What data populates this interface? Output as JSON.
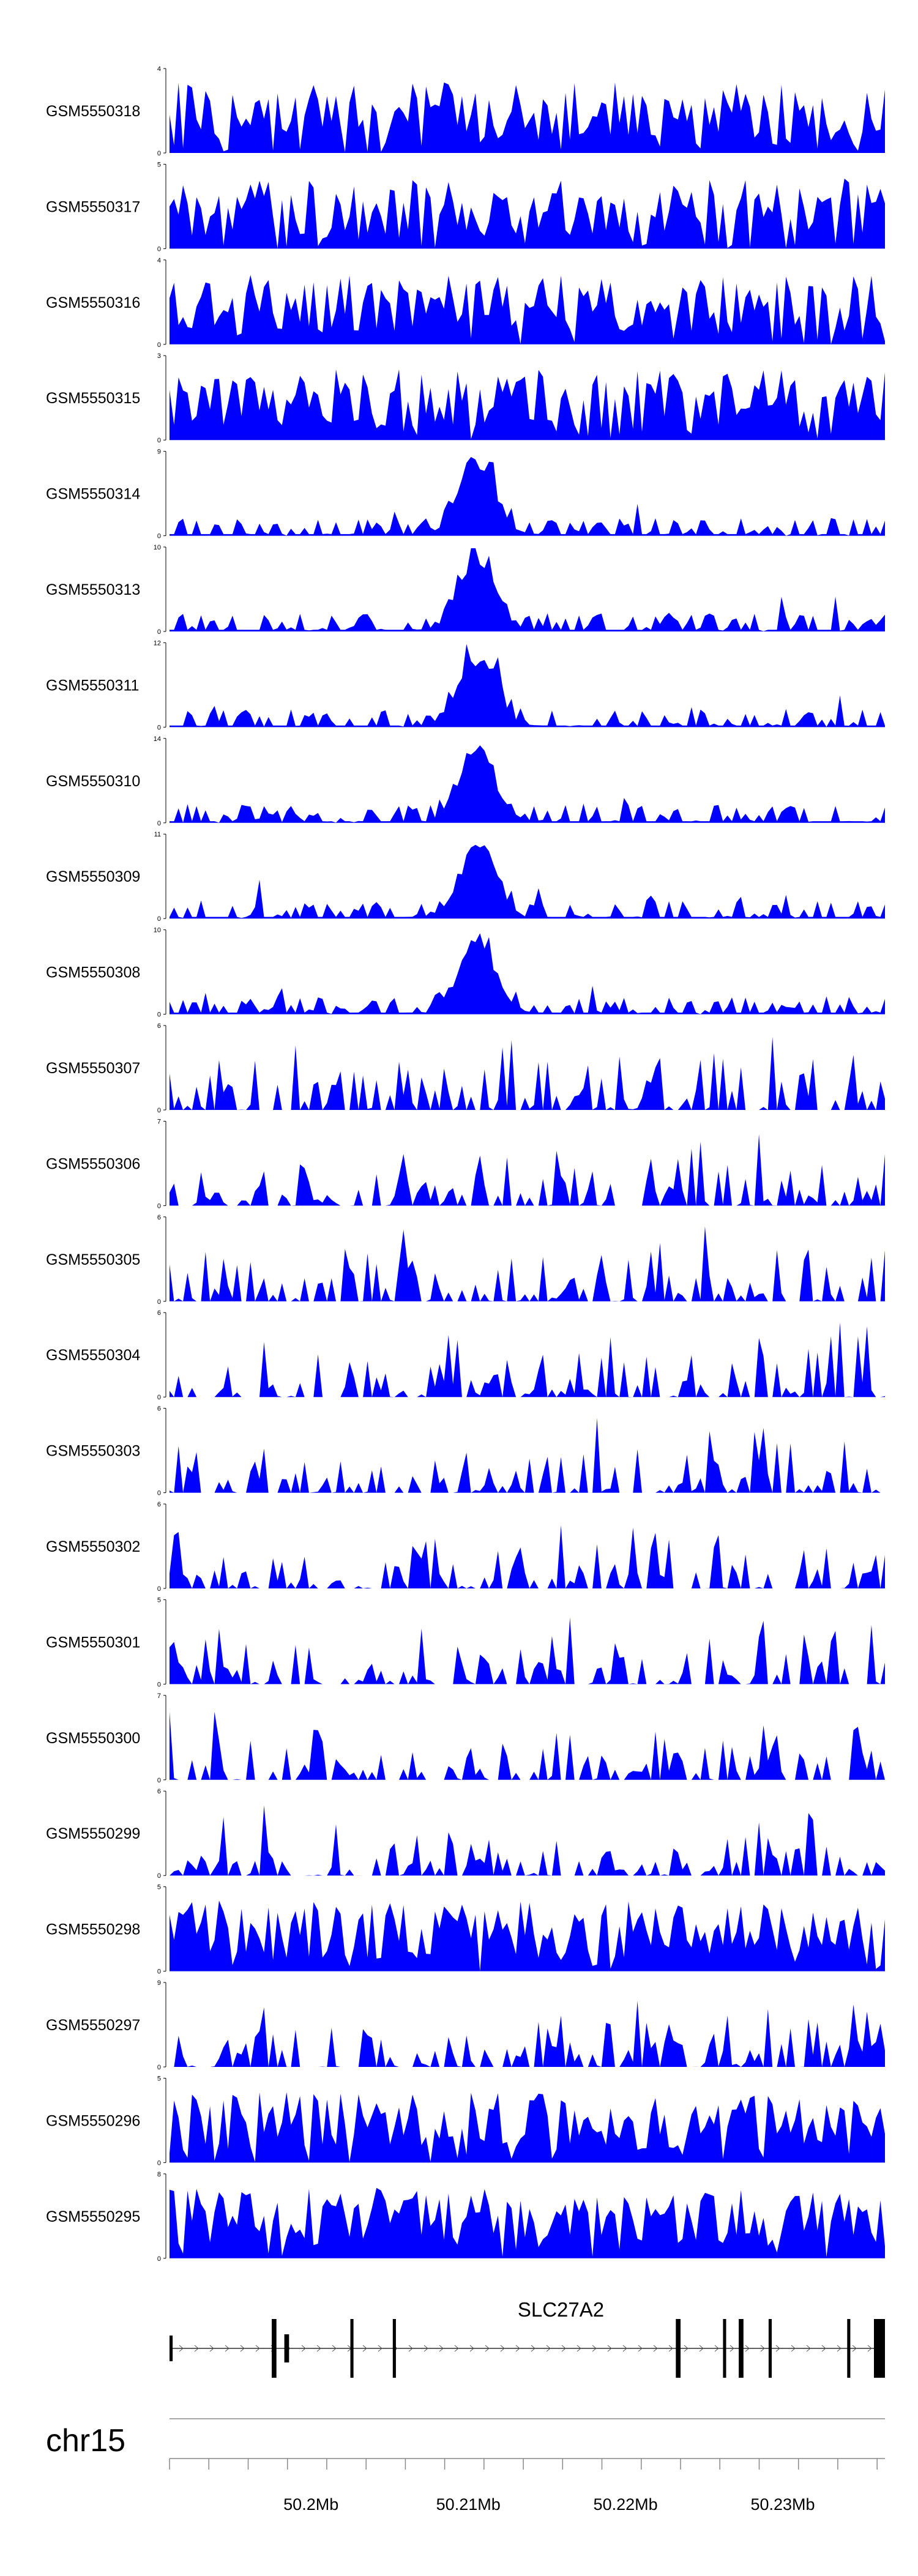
{
  "colors": {
    "signal": "#0000FF",
    "axis": "#000000",
    "gene": "#000000",
    "ruler": "#888888"
  },
  "chart_data": {
    "type": "area",
    "title": "",
    "xlabel": "",
    "ylabel": "",
    "chromosome": "chr15",
    "xlim": [
      50.191,
      50.2365
    ],
    "x_unit": "Mb",
    "x_ticks": [
      50.2,
      50.21,
      50.22,
      50.23
    ],
    "x_tick_labels": [
      "50.2Mb",
      "50.21Mb",
      "50.22Mb",
      "50.23Mb"
    ],
    "bins": 160,
    "tracks": [
      {
        "name": "GSM5550318",
        "ymax": 4,
        "profile": "flat"
      },
      {
        "name": "GSM5550317",
        "ymax": 5,
        "profile": "flat"
      },
      {
        "name": "GSM5550316",
        "ymax": 4,
        "profile": "flat"
      },
      {
        "name": "GSM5550315",
        "ymax": 3,
        "profile": "flat"
      },
      {
        "name": "GSM5550314",
        "ymax": 9,
        "profile": "peak"
      },
      {
        "name": "GSM5550313",
        "ymax": 10,
        "profile": "peak"
      },
      {
        "name": "GSM5550311",
        "ymax": 12,
        "profile": "peak"
      },
      {
        "name": "GSM5550310",
        "ymax": 14,
        "profile": "peak"
      },
      {
        "name": "GSM5550309",
        "ymax": 11,
        "profile": "peak"
      },
      {
        "name": "GSM5550308",
        "ymax": 10,
        "profile": "peak"
      },
      {
        "name": "GSM5550307",
        "ymax": 6,
        "profile": "spiky"
      },
      {
        "name": "GSM5550306",
        "ymax": 7,
        "profile": "spiky"
      },
      {
        "name": "GSM5550305",
        "ymax": 6,
        "profile": "spiky"
      },
      {
        "name": "GSM5550304",
        "ymax": 6,
        "profile": "spiky"
      },
      {
        "name": "GSM5550303",
        "ymax": 6,
        "profile": "spiky"
      },
      {
        "name": "GSM5550302",
        "ymax": 6,
        "profile": "spiky"
      },
      {
        "name": "GSM5550301",
        "ymax": 5,
        "profile": "spiky"
      },
      {
        "name": "GSM5550300",
        "ymax": 7,
        "profile": "spiky"
      },
      {
        "name": "GSM5550299",
        "ymax": 6,
        "profile": "spiky"
      },
      {
        "name": "GSM5550298",
        "ymax": 5,
        "profile": "flat"
      },
      {
        "name": "GSM5550297",
        "ymax": 9,
        "profile": "spiky"
      },
      {
        "name": "GSM5550296",
        "ymax": 5,
        "profile": "flat"
      },
      {
        "name": "GSM5550295",
        "ymax": 8,
        "profile": "flat"
      }
    ],
    "gene": {
      "name": "SLC27A2",
      "strand": "+",
      "start": 50.191,
      "end": 50.2365,
      "exons": [
        [
          50.191,
          50.1912
        ],
        [
          50.1975,
          50.1978
        ],
        [
          50.1983,
          50.1986
        ],
        [
          50.2025,
          50.2027
        ],
        [
          50.2052,
          50.2054
        ],
        [
          50.2232,
          50.2235
        ],
        [
          50.2262,
          50.2264
        ],
        [
          50.2272,
          50.2275
        ],
        [
          50.2291,
          50.2293
        ],
        [
          50.2341,
          50.2343
        ],
        [
          50.2358,
          50.2365
        ]
      ]
    }
  }
}
